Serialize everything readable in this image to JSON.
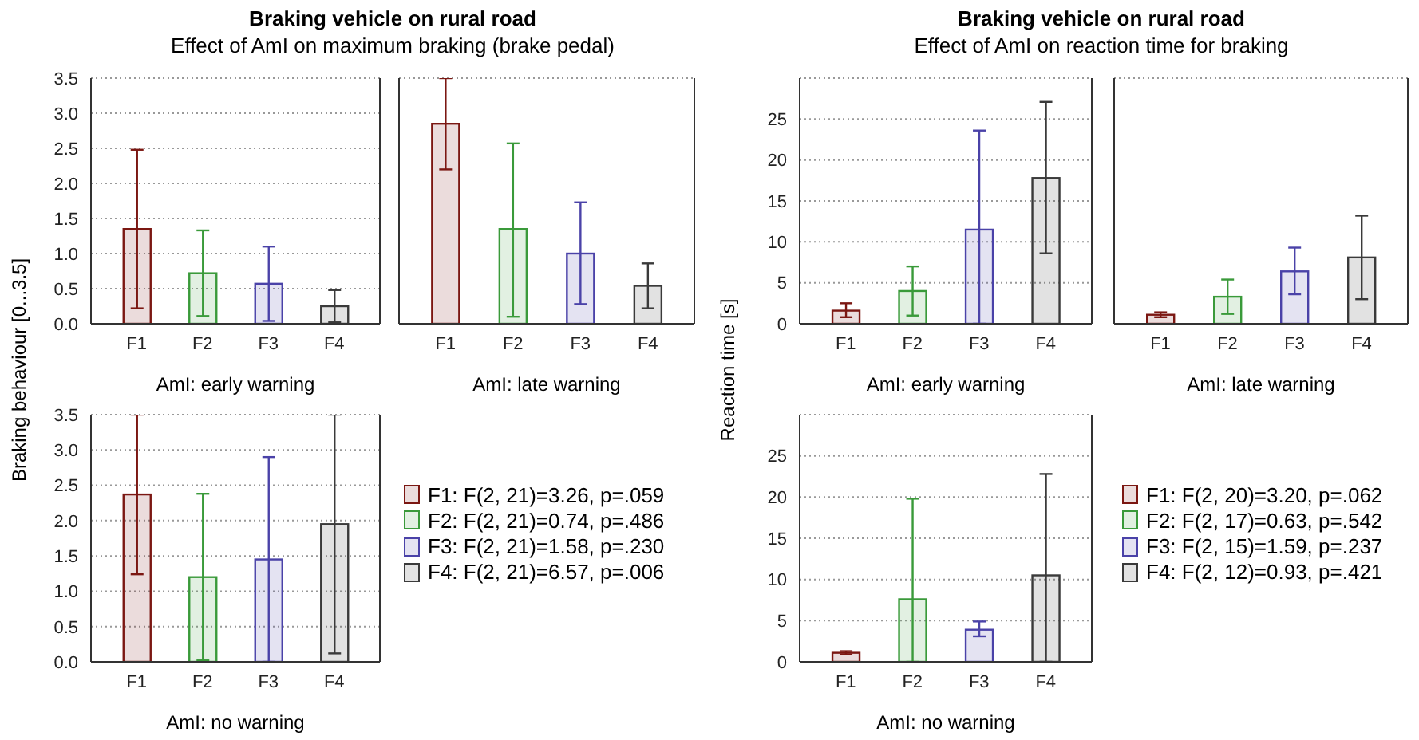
{
  "chart_data": [
    {
      "type": "bar",
      "title": "Braking vehicle on rural road",
      "subtitle": "Effect of AmI on maximum braking (brake pedal)",
      "xlabel": "AmI: early warning",
      "categories": [
        "F1",
        "F2",
        "F3",
        "F4"
      ],
      "values": [
        1.35,
        0.72,
        0.57,
        0.25
      ],
      "errors": [
        1.13,
        0.61,
        0.53,
        0.23
      ],
      "colors": [
        "#7b1712",
        "#3a9a3a",
        "#4a42a8",
        "#3a3a3a"
      ],
      "ylim": [
        0,
        3.5
      ],
      "yticks": [
        {
          "value": 0,
          "label": "0.0"
        },
        0.5,
        {
          "value": 1,
          "label": "1.0"
        },
        1.5,
        {
          "value": 2,
          "label": "2.0"
        },
        2.5,
        {
          "value": 3,
          "label": "3.0"
        },
        3.5
      ],
      "grid": "y"
    },
    {
      "type": "bar",
      "xlabel": "AmI: late warning",
      "categories": [
        "F1",
        "F2",
        "F3",
        "F4"
      ],
      "values": [
        2.85,
        1.35,
        1.0,
        0.54
      ],
      "errors": [
        [
          2.2,
          3.5
        ],
        [
          0.1,
          2.57
        ],
        [
          0.28,
          1.73
        ],
        [
          0.22,
          0.86
        ]
      ],
      "colors": [
        "#7b1712",
        "#3a9a3a",
        "#4a42a8",
        "#3a3a3a"
      ],
      "ylim": [
        0,
        3.5
      ],
      "yticks": [
        0,
        0.5,
        1,
        1.5,
        2,
        2.5,
        3,
        3.5
      ],
      "grid": "y",
      "tick_labels": "x"
    },
    {
      "type": "bar",
      "title": "Braking vehicle on rural road",
      "subtitle": "Effect of AmI on reaction time for braking",
      "xlabel": "AmI: early warning",
      "categories": [
        "F1",
        "F2",
        "F3",
        "F4"
      ],
      "values": [
        1.6,
        4.0,
        11.5,
        17.8
      ],
      "errors": [
        [
          0.8,
          2.5
        ],
        [
          1.0,
          7.0
        ],
        [
          0,
          23.6
        ],
        [
          8.6,
          27.1
        ]
      ],
      "colors": [
        "#7b1712",
        "#3a9a3a",
        "#4a42a8",
        "#3a3a3a"
      ],
      "ylim": [
        0,
        30
      ],
      "yticks": [
        0,
        5,
        10,
        15,
        20,
        25
      ],
      "grid": "y"
    },
    {
      "type": "bar",
      "xlabel": "AmI: late warning",
      "categories": [
        "F1",
        "F2",
        "F3",
        "F4"
      ],
      "values": [
        1.1,
        3.3,
        6.4,
        8.1
      ],
      "errors": [
        0.3,
        [
          1.2,
          5.4
        ],
        [
          3.6,
          9.3
        ],
        [
          3.0,
          13.2
        ]
      ],
      "colors": [
        "#7b1712",
        "#3a9a3a",
        "#4a42a8",
        "#3a3a3a"
      ],
      "ylim": [
        0,
        30
      ],
      "yticks": [
        0,
        5,
        10,
        15,
        20,
        25
      ],
      "grid": "y",
      "tick_labels": "x"
    },
    {
      "type": "bar",
      "xlabel": "AmI: no warning",
      "ylabel": "Braking behaviour [0...3.5]",
      "categories": [
        "F1",
        "F2",
        "F3",
        "F4"
      ],
      "values": [
        2.37,
        1.2,
        1.45,
        1.95
      ],
      "errors": [
        [
          1.24,
          3.5
        ],
        1.18,
        1.45,
        [
          0.12,
          3.5
        ]
      ],
      "colors": [
        "#7b1712",
        "#3a9a3a",
        "#4a42a8",
        "#3a3a3a"
      ],
      "ylim": [
        0,
        3.5
      ],
      "yticks": [
        {
          "value": 0,
          "label": "0.0"
        },
        0.5,
        {
          "value": 1,
          "label": "1.0"
        },
        1.5,
        {
          "value": 2,
          "label": "2.0"
        },
        2.5,
        {
          "value": 3,
          "label": "3.0"
        },
        3.5
      ],
      "grid": "y",
      "annotations": [
        "F1: F(2, 21)=3.26, p=.059",
        "F2: F(2, 21)=0.74, p=.486",
        "F3: F(2, 21)=1.58, p=.230",
        "F4: F(2, 21)=6.57, p=.006"
      ]
    },
    {
      "type": "bar",
      "xlabel": "AmI: no warning",
      "ylabel": "Reaction time [s]",
      "categories": [
        "F1",
        "F2",
        "F3",
        "F4"
      ],
      "values": [
        1.1,
        7.6,
        3.9,
        10.5
      ],
      "errors": [
        0.2,
        [
          0,
          19.8
        ],
        [
          3.1,
          4.9
        ],
        [
          0,
          22.8
        ]
      ],
      "colors": [
        "#7b1712",
        "#3a9a3a",
        "#4a42a8",
        "#3a3a3a"
      ],
      "ylim": [
        0,
        30
      ],
      "yticks": [
        0,
        5,
        10,
        15,
        20,
        25
      ],
      "grid": "y",
      "annotations": [
        "F1: F(2, 20)=3.20, p=.062",
        "F2: F(2, 17)=0.63, p=.542",
        "F3: F(2, 15)=1.59, p=.237",
        "F4: F(2, 12)=0.93, p=.421"
      ]
    }
  ]
}
